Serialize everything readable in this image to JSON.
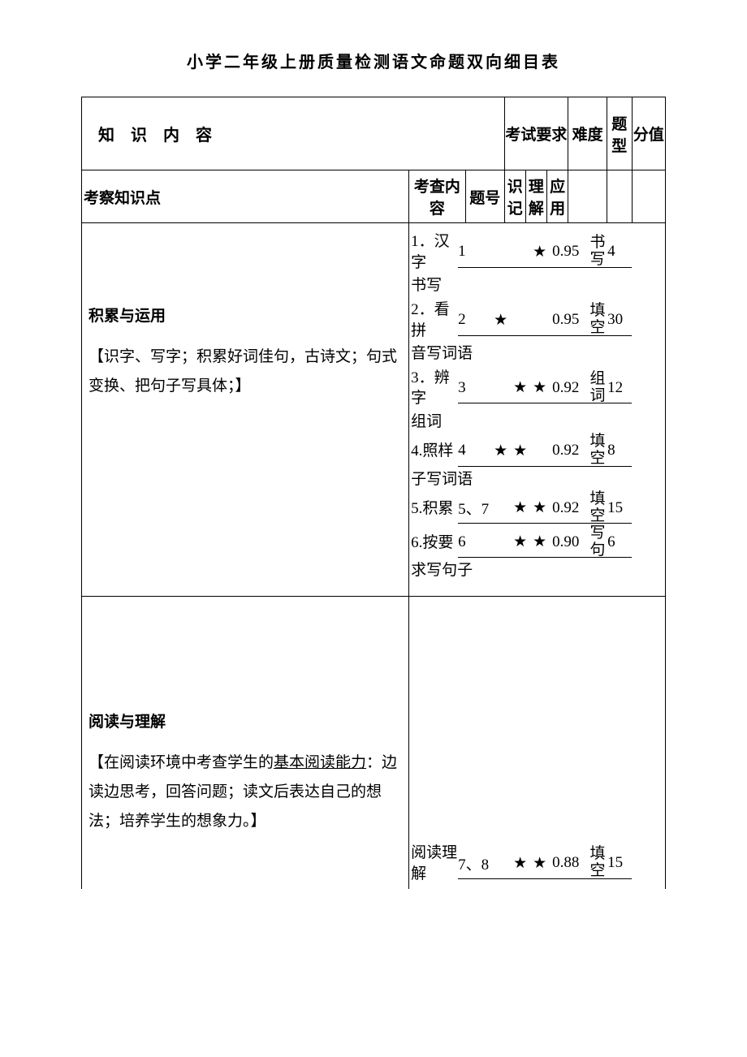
{
  "title": "小学二年级上册质量检测语文命题双向细目表",
  "columns": {
    "knowledge_content": "知识内容",
    "exam_req": "考试要求",
    "difficulty": "难度",
    "qtype": "题型",
    "score": "分值",
    "exam_point": "考察知识点",
    "exam_content": "考查内容",
    "qnum": "题号",
    "recognize": "识记",
    "understand": "理解",
    "apply": "应用"
  },
  "section1": {
    "title": "积累与运用",
    "desc": "【识字、写字；积累好词佳句，古诗文；句式变换、把句子写具体；】",
    "rows": [
      {
        "content": "1．汉字书写",
        "label_top": "1．汉字",
        "label_rest": "书写",
        "qnum": "1",
        "r1": "",
        "r2": "",
        "r3": "★",
        "diff": "0.95",
        "type": "书写",
        "score": "4"
      },
      {
        "content": "2．看拼音写词语",
        "label_top": "2．看拼",
        "label_rest": "音写词语",
        "qnum": "2",
        "r1": "★",
        "r2": "",
        "r3": "",
        "diff": "0.95",
        "type": "填空",
        "score": "30"
      },
      {
        "content": "3．辨字组词",
        "label_top": "3．辨字",
        "label_rest": "组词",
        "qnum": "3",
        "r1": "",
        "r2": "★",
        "r3": "★",
        "diff": "0.92",
        "type": "组词",
        "score": "12"
      },
      {
        "content": "4.照样子写词语",
        "label_top": "4.照样",
        "label_rest": "子写词语",
        "qnum": "4",
        "r1": "★",
        "r2": "★",
        "r3": "",
        "diff": "0.92",
        "type": "填空",
        "score": "8"
      },
      {
        "content": "5.积累",
        "label_top": "5.积累",
        "label_rest": "",
        "qnum": "5、7",
        "r1": "",
        "r2": "★",
        "r3": "★",
        "diff": "0.92",
        "type": "填空",
        "score": "15"
      },
      {
        "content": "6.按要求写句子",
        "label_top": "6.按要",
        "label_rest": "求写句子",
        "qnum": "6",
        "r1": "",
        "r2": "★",
        "r3": "★",
        "diff": "0.90",
        "type": "写句",
        "score": "6"
      }
    ]
  },
  "section2": {
    "title": "阅读与理解",
    "desc_prefix": "【在阅读环境中考查学生的",
    "desc_underline": "基本阅读能力",
    "desc_suffix": "：边读边思考，回答问题；读文后表达自己的想法；培养学生的想象力。】",
    "row": {
      "content": "阅读理解",
      "qnum": "7、8",
      "r1": "",
      "r2": "★",
      "r3": "★",
      "diff": "0.88",
      "type": "填空",
      "score": "15"
    }
  },
  "star": "★"
}
